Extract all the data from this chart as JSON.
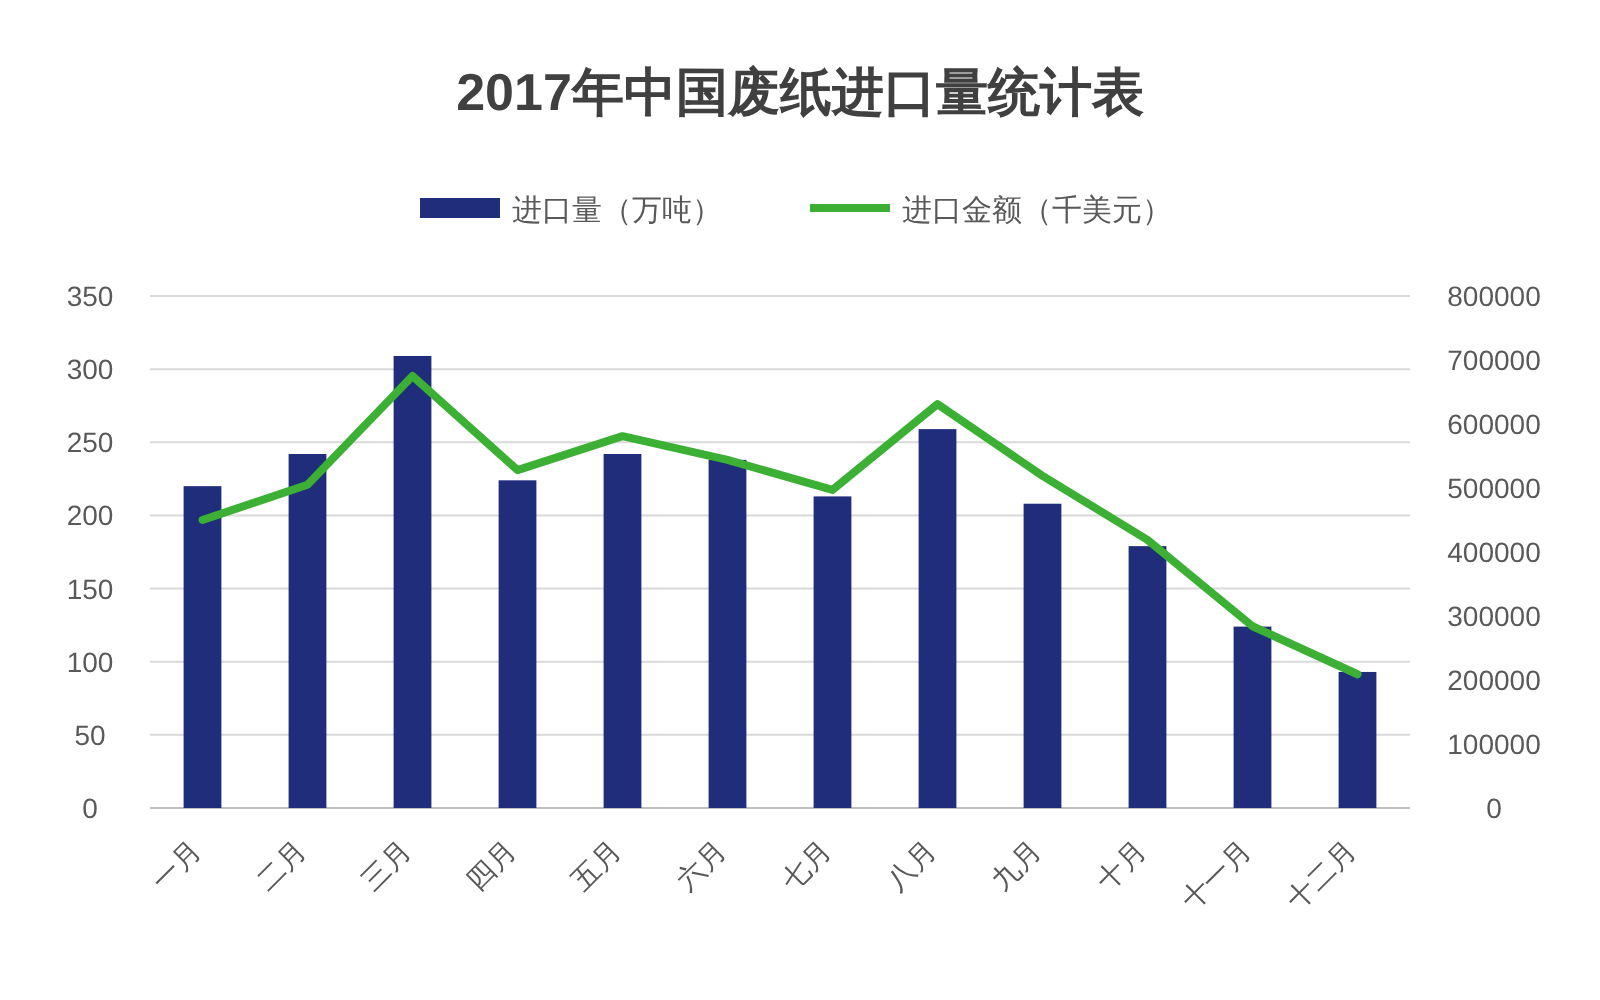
{
  "chart_data": {
    "type": "bar",
    "title": "2017年中国废纸进口量统计表",
    "categories": [
      "一月",
      "二月",
      "三月",
      "四月",
      "五月",
      "六月",
      "七月",
      "八月",
      "九月",
      "十月",
      "十一月",
      "十二月"
    ],
    "series": [
      {
        "name": "进口量（万吨）",
        "color": "#1f2d7b",
        "values": [
          220,
          242,
          309,
          224,
          242,
          238,
          213,
          259,
          208,
          179,
          124,
          93
        ]
      },
      {
        "name": "进口金额（千美元）",
        "type": "line",
        "axis": "y2",
        "color": "#3cb034",
        "values": [
          450000,
          505000,
          675000,
          528000,
          581000,
          544000,
          497000,
          631000,
          519000,
          419000,
          284000,
          209000
        ]
      }
    ],
    "ylim": [
      0,
      350
    ],
    "yticks": [
      0,
      50,
      100,
      150,
      200,
      250,
      300,
      350
    ],
    "y2lim": [
      0,
      800000
    ],
    "y2ticks": [
      0,
      100000,
      200000,
      300000,
      400000,
      500000,
      600000,
      700000,
      800000
    ],
    "grid": "y",
    "legend": "top"
  }
}
